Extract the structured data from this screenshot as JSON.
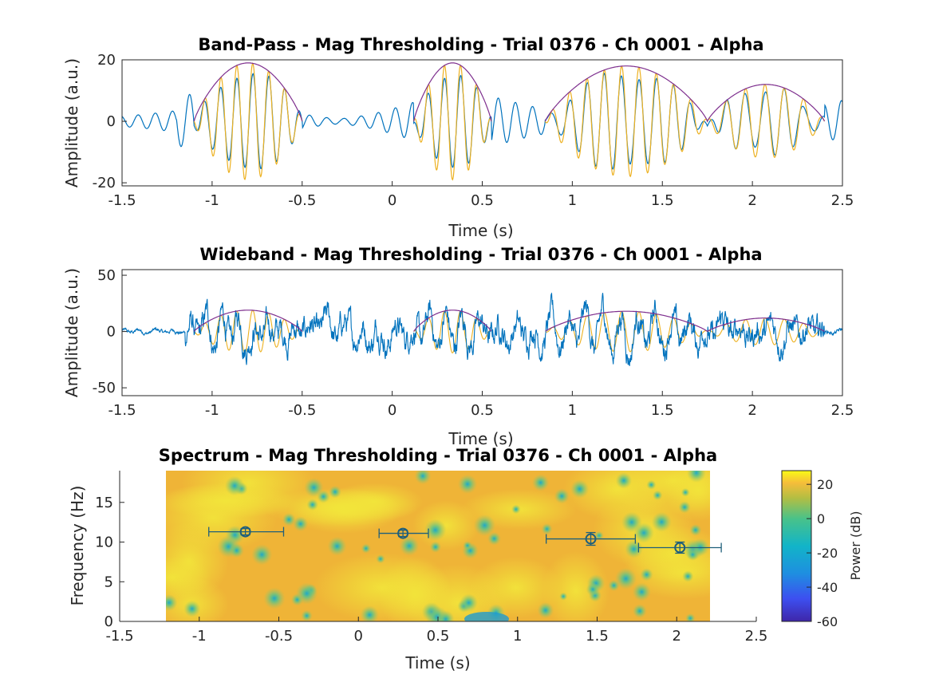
{
  "colors": {
    "signal": "#0072BD",
    "fit": "#EDB120",
    "envelope": "#7E2F8E",
    "marker": "#1F5F7A"
  },
  "chart_data": [
    {
      "type": "line",
      "title": "Band-Pass - Mag Thresholding - Trial 0376 - Ch 0001 - Alpha",
      "xlabel": "Time (s)",
      "ylabel": "Amplitude (a.u.)",
      "xlim": [
        -1.5,
        2.5
      ],
      "ylim": [
        -21,
        20
      ],
      "xticks": [
        "-1.5",
        "-1",
        "-0.5",
        "0",
        "0.5",
        "1",
        "1.5",
        "2",
        "2.5"
      ],
      "yticks": [
        "-20",
        "0",
        "20"
      ],
      "grid": false,
      "bursts": [
        {
          "start": -1.1,
          "end": -0.5,
          "peak": 19,
          "freq": 11.3
        },
        {
          "start": 0.12,
          "end": 0.55,
          "peak": 19,
          "freq": 11.2
        },
        {
          "start": 0.85,
          "end": 1.75,
          "peak": 18,
          "freq": 10.4
        },
        {
          "start": 1.75,
          "end": 2.4,
          "peak": 12,
          "freq": 9.3
        }
      ]
    },
    {
      "type": "line",
      "title": "Wideband - Mag Thresholding - Trial 0376 - Ch 0001 - Alpha",
      "xlabel": "Time (s)",
      "ylabel": "Amplitude (a.u.)",
      "xlim": [
        -1.5,
        2.5
      ],
      "ylim": [
        -57,
        55
      ],
      "xticks": [
        "-1.5",
        "-1",
        "-0.5",
        "0",
        "0.5",
        "1",
        "1.5",
        "2",
        "2.5"
      ],
      "yticks": [
        "-50",
        "0",
        "50"
      ],
      "grid": false
    },
    {
      "type": "heatmap",
      "title": "Spectrum - Mag Thresholding - Trial 0376 - Ch 0001 - Alpha",
      "xlabel": "Time (s)",
      "ylabel": "Frequency (Hz)",
      "xlim": [
        -1.5,
        2.5
      ],
      "ylim": [
        0,
        19
      ],
      "xticks": [
        "-1.5",
        "-1",
        "-0.5",
        "0",
        "0.5",
        "1",
        "1.5",
        "2",
        "2.5"
      ],
      "yticks": [
        "0",
        "5",
        "10",
        "15"
      ],
      "colorbar": {
        "label": "Power (dB)",
        "ticks": [
          "20",
          "0",
          "-20",
          "-40",
          "-60"
        ],
        "range": [
          -60,
          28
        ]
      },
      "markers": [
        {
          "x": -0.71,
          "y": 11.3,
          "xerr_low": -0.94,
          "xerr_high": -0.47,
          "yerr": 0.4
        },
        {
          "x": 0.28,
          "y": 11.1,
          "xerr_low": 0.13,
          "xerr_high": 0.44,
          "yerr": 0.4
        },
        {
          "x": 1.46,
          "y": 10.4,
          "xerr_low": 1.18,
          "xerr_high": 1.74,
          "yerr": 0.8
        },
        {
          "x": 2.02,
          "y": 9.3,
          "xerr_low": 1.76,
          "xerr_high": 2.28,
          "yerr": 0.7
        }
      ]
    }
  ]
}
